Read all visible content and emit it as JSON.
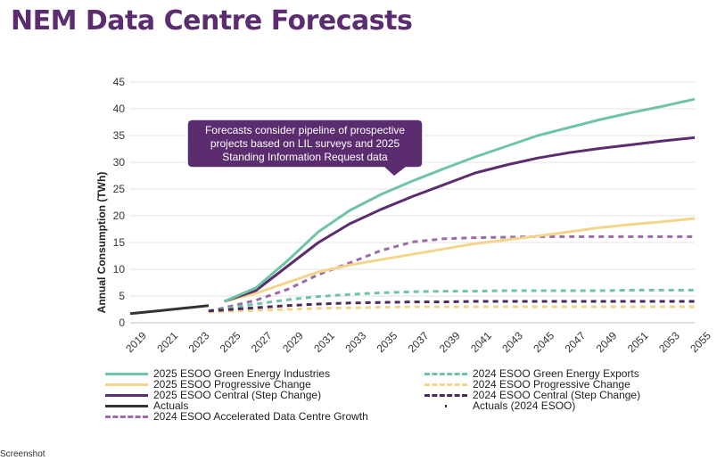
{
  "page": {
    "title": "NEM Data Centre Forecasts",
    "footer_label": "Screenshot"
  },
  "chart_data": {
    "type": "line",
    "title": "NEM Data Centre Forecasts",
    "ylabel": "Annual Consumption (TWh)",
    "xlabel": "",
    "xlim": [
      2019,
      2055
    ],
    "ylim": [
      0,
      45
    ],
    "yticks": [
      0,
      5,
      10,
      15,
      20,
      25,
      30,
      35,
      40,
      45
    ],
    "xticks": [
      2019,
      2021,
      2023,
      2025,
      2027,
      2029,
      2031,
      2033,
      2035,
      2037,
      2039,
      2041,
      2043,
      2045,
      2047,
      2049,
      2051,
      2053,
      2055
    ],
    "annotation": "Forecasts consider pipeline of prospective projects based on LIL surveys and 2025 Standing Information Request data",
    "series": [
      {
        "name": "2025 ESOO Green Energy Industries",
        "color": "#6fc4a5",
        "dash": "solid",
        "x": [
          2025,
          2027,
          2029,
          2031,
          2033,
          2035,
          2037,
          2039,
          2041,
          2043,
          2045,
          2047,
          2049,
          2051,
          2053,
          2055
        ],
        "y": [
          4.0,
          6.5,
          11.5,
          17.0,
          21.0,
          24.0,
          26.5,
          28.8,
          31.0,
          33.0,
          35.0,
          36.5,
          38.0,
          39.3,
          40.5,
          41.8
        ]
      },
      {
        "name": "2025 ESOO Progressive Change",
        "color": "#f2d58a",
        "dash": "solid",
        "x": [
          2025,
          2027,
          2029,
          2031,
          2033,
          2035,
          2037,
          2039,
          2041,
          2043,
          2045,
          2047,
          2049,
          2051,
          2053,
          2055
        ],
        "y": [
          4.0,
          5.5,
          7.5,
          9.5,
          10.8,
          11.8,
          12.8,
          13.8,
          14.8,
          15.5,
          16.2,
          17.0,
          17.8,
          18.4,
          18.9,
          19.5
        ]
      },
      {
        "name": "2025 ESOO Central (Step Change)",
        "color": "#5b2c6f",
        "dash": "solid",
        "x": [
          2025,
          2027,
          2029,
          2031,
          2033,
          2035,
          2037,
          2039,
          2041,
          2043,
          2045,
          2047,
          2049,
          2051,
          2053,
          2055
        ],
        "y": [
          4.0,
          6.0,
          10.5,
          15.0,
          18.5,
          21.2,
          23.6,
          25.8,
          28.0,
          29.5,
          30.8,
          31.8,
          32.6,
          33.3,
          34.0,
          34.6
        ]
      },
      {
        "name": "Actuals",
        "color": "#333333",
        "dash": "solid",
        "x": [
          2019,
          2020,
          2021,
          2022,
          2023,
          2024
        ],
        "y": [
          1.7,
          2.0,
          2.3,
          2.6,
          2.9,
          3.2
        ]
      },
      {
        "name": "2024 ESOO Accelerated Data Centre Growth",
        "color": "#9b6aa8",
        "dash": "dash",
        "x": [
          2024,
          2025,
          2027,
          2029,
          2031,
          2033,
          2035,
          2037,
          2039,
          2041,
          2043,
          2045,
          2047,
          2049,
          2051,
          2053,
          2055
        ],
        "y": [
          2.2,
          2.8,
          4.2,
          6.2,
          9.0,
          11.2,
          13.5,
          15.1,
          15.7,
          15.9,
          16.0,
          16.1,
          16.1,
          16.1,
          16.1,
          16.1,
          16.1
        ]
      },
      {
        "name": "2024 ESOO Green Energy Exports",
        "color": "#6fc4a5",
        "dash": "dash",
        "x": [
          2024,
          2025,
          2027,
          2029,
          2031,
          2033,
          2035,
          2037,
          2039,
          2041,
          2043,
          2045,
          2047,
          2049,
          2051,
          2053,
          2055
        ],
        "y": [
          2.2,
          2.6,
          3.5,
          4.3,
          4.9,
          5.3,
          5.6,
          5.8,
          5.9,
          5.9,
          6.0,
          6.0,
          6.0,
          6.0,
          6.1,
          6.1,
          6.1
        ]
      },
      {
        "name": "2024 ESOO Progressive Change",
        "color": "#f2d58a",
        "dash": "dash",
        "x": [
          2024,
          2025,
          2027,
          2029,
          2031,
          2033,
          2035,
          2037,
          2039,
          2041,
          2043,
          2045,
          2047,
          2049,
          2051,
          2053,
          2055
        ],
        "y": [
          2.0,
          2.1,
          2.3,
          2.5,
          2.7,
          2.8,
          2.9,
          3.0,
          3.0,
          3.0,
          3.0,
          3.0,
          3.0,
          3.0,
          3.0,
          3.0,
          3.0
        ]
      },
      {
        "name": "2024 ESOO Central (Step Change)",
        "color": "#4a2a5e",
        "dash": "dash",
        "x": [
          2024,
          2025,
          2027,
          2029,
          2031,
          2033,
          2035,
          2037,
          2039,
          2041,
          2043,
          2045,
          2047,
          2049,
          2051,
          2053,
          2055
        ],
        "y": [
          2.2,
          2.4,
          2.8,
          3.2,
          3.5,
          3.7,
          3.8,
          3.9,
          3.9,
          4.0,
          4.0,
          4.0,
          4.0,
          4.0,
          4.0,
          4.0,
          4.0
        ]
      },
      {
        "name": "Actuals (2024 ESOO)",
        "color": "#333333",
        "dash": "dot",
        "x": [],
        "y": []
      }
    ]
  }
}
